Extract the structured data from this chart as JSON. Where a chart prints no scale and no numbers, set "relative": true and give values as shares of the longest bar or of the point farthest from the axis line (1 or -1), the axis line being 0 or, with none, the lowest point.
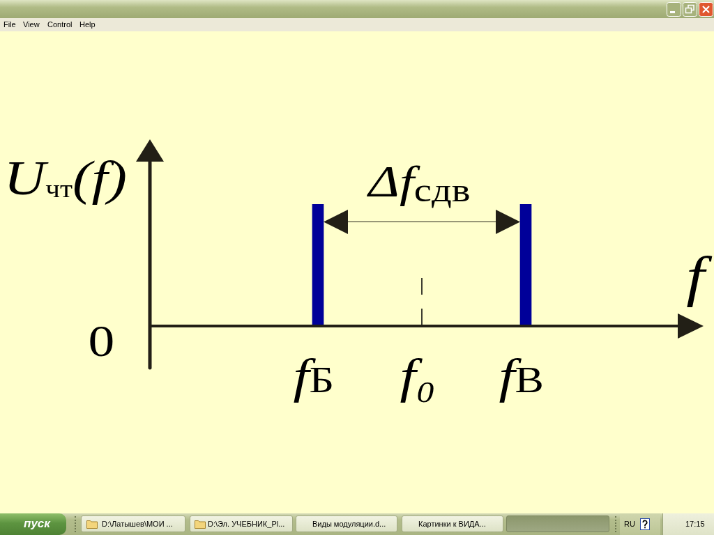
{
  "chart_data": {
    "type": "bar",
    "xlabel": "f",
    "ylabel": "U$_{чт}$(f)",
    "categories": [
      "f$_{Б}$",
      "f₀",
      "f$_{В}$"
    ],
    "values": [
      1,
      null,
      1
    ],
    "color": "#000099",
    "relative": true,
    "ref_lines": [
      {
        "axis": "x",
        "value": "f₀",
        "line_style": "dashed",
        "color": "#000000"
      }
    ],
    "annotations": [
      "Δf$_{сдв}$",
      "0",
      "File",
      "View",
      "Control",
      "Help",
      "пуск",
      "D:\\Латышев\\МОИ ...",
      "D:\\Эл. УЧЕБНИК_Pl...",
      "Виды модуляции.d...",
      "Картинки к ВИДА...",
      "RU",
      "17:15"
    ]
  }
}
